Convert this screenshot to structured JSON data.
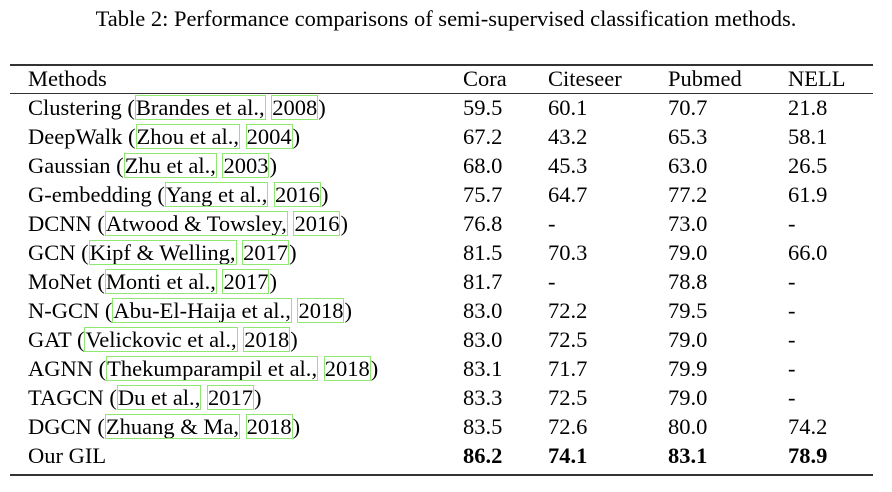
{
  "caption": "Table 2: Performance comparisons of semi-supervised classification methods.",
  "columns": [
    "Methods",
    "Cora",
    "Citeseer",
    "Pubmed",
    "NELL"
  ],
  "rows": [
    {
      "name": "Clustering",
      "author": "Brandes et al.",
      "year": "2008",
      "values": [
        "59.5",
        "60.1",
        "70.7",
        "21.8"
      ]
    },
    {
      "name": "DeepWalk",
      "author": "Zhou et al.",
      "year": "2004",
      "values": [
        "67.2",
        "43.2",
        "65.3",
        "58.1"
      ]
    },
    {
      "name": "Gaussian",
      "author": "Zhu et al.",
      "year": "2003",
      "values": [
        "68.0",
        "45.3",
        "63.0",
        "26.5"
      ]
    },
    {
      "name": "G-embedding",
      "author": "Yang et al.",
      "year": "2016",
      "values": [
        "75.7",
        "64.7",
        "77.2",
        "61.9"
      ]
    },
    {
      "name": "DCNN",
      "author": "Atwood & Towsley",
      "year": "2016",
      "values": [
        "76.8",
        "-",
        "73.0",
        "-"
      ]
    },
    {
      "name": "GCN",
      "author": "Kipf & Welling",
      "year": "2017",
      "values": [
        "81.5",
        "70.3",
        "79.0",
        "66.0"
      ]
    },
    {
      "name": "MoNet",
      "author": "Monti et al.",
      "year": "2017",
      "values": [
        "81.7",
        "-",
        "78.8",
        "-"
      ]
    },
    {
      "name": "N-GCN",
      "author": "Abu-El-Haija et al.",
      "year": "2018",
      "values": [
        "83.0",
        "72.2",
        "79.5",
        "-"
      ]
    },
    {
      "name": "GAT",
      "author": "Velickovic et al.",
      "year": "2018",
      "values": [
        "83.0",
        "72.5",
        "79.0",
        "-"
      ]
    },
    {
      "name": "AGNN",
      "author": "Thekumparampil et al.",
      "year": "2018",
      "values": [
        "83.1",
        "71.7",
        "79.9",
        "-"
      ]
    },
    {
      "name": "TAGCN",
      "author": "Du et al.",
      "year": "2017",
      "values": [
        "83.3",
        "72.5",
        "79.0",
        "-"
      ]
    },
    {
      "name": "DGCN",
      "author": "Zhuang & Ma",
      "year": "2018",
      "values": [
        "83.5",
        "72.6",
        "80.0",
        "74.2"
      ]
    },
    {
      "name": "Our GIL",
      "values": [
        "86.2",
        "74.1",
        "83.1",
        "78.9"
      ],
      "bold": true
    }
  ],
  "citation_box_color": "#8fe870"
}
